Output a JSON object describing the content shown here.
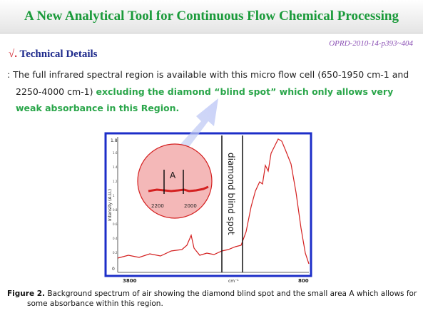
{
  "header": {
    "title": "A New Analytical Tool for Continuous Flow Chemical Processing",
    "reference": "OPRD-2010-14-p393~404"
  },
  "section": {
    "marker": "√.",
    "heading": "Technical Details",
    "body_plain": ": The full infrared spectral region is available with this micro flow cell (650-1950 cm-1 and 2250-4000 cm-1)",
    "body_highlight": "excluding the diamond “blind spot” which only allows very weak absorbance in this Region."
  },
  "figure": {
    "y_top": "1.8",
    "y_bottom": "0",
    "y_title": "Intensity (A.U.)",
    "x_left": "3800",
    "x_right": "800",
    "x_title": "cm⁻¹",
    "blind_spot_label": "diamond blind spot",
    "region_label": "A",
    "zoom_ticks": [
      "2200",
      "2000"
    ]
  },
  "caption": {
    "label": "Figure 2.",
    "text": "Background spectrum of air showing the diamond blind spot and the small area A which allows for some absorbance within this region."
  }
}
